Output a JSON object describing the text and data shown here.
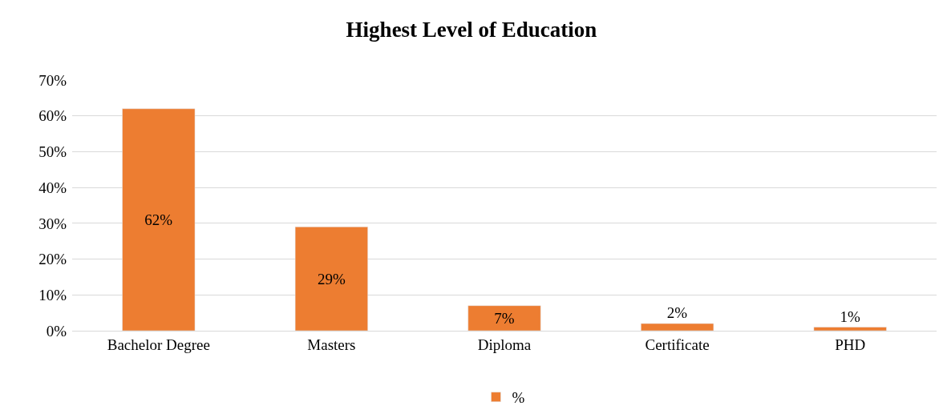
{
  "chart_data": {
    "type": "bar",
    "title": "Highest Level of Education",
    "categories": [
      "Bachelor Degree",
      "Masters",
      "Diploma",
      "Certificate",
      "PHD"
    ],
    "series": [
      {
        "name": "%",
        "color": "#ed7d31",
        "values": [
          62,
          29,
          7,
          2,
          1
        ],
        "value_labels": [
          "62%",
          "29%",
          "7%",
          "2%",
          "1%"
        ]
      }
    ],
    "ylim": [
      0,
      70
    ],
    "yticks": [
      {
        "value": 0,
        "label": "0%"
      },
      {
        "value": 10,
        "label": "10%"
      },
      {
        "value": 20,
        "label": "20%"
      },
      {
        "value": 30,
        "label": "30%"
      },
      {
        "value": 40,
        "label": "40%"
      },
      {
        "value": 50,
        "label": "50%"
      },
      {
        "value": 60,
        "label": "60%"
      },
      {
        "value": 70,
        "label": "70%"
      }
    ],
    "grid": "y",
    "legend": "bottom"
  }
}
